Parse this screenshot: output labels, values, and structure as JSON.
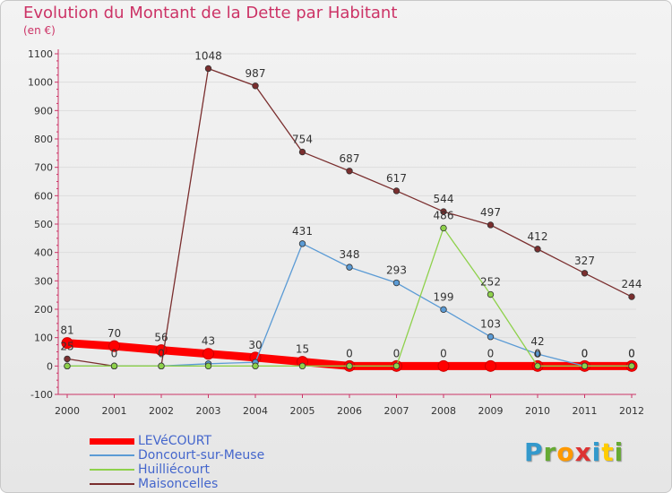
{
  "header": {
    "title": "Evolution du Montant de la Dette par Habitant",
    "subtitle": "(en €)"
  },
  "logo_text": "Proxiti",
  "logo_colors": [
    "#3399cc",
    "#66aa33",
    "#ff9900",
    "#dd3333",
    "#3399cc",
    "#ffcc00",
    "#66aa33"
  ],
  "chart_data": {
    "type": "line",
    "title": "Evolution du Montant de la Dette par Habitant",
    "ylabel": "(en €)",
    "xlabel": "",
    "ylim": [
      -100,
      1100
    ],
    "yticks": [
      -100,
      0,
      100,
      200,
      300,
      400,
      500,
      600,
      700,
      800,
      900,
      1000,
      1100
    ],
    "categories": [
      "2000",
      "2001",
      "2002",
      "2003",
      "2004",
      "2005",
      "2006",
      "2007",
      "2008",
      "2009",
      "2010",
      "2011",
      "2012"
    ],
    "series": [
      {
        "name": "LEVéCOURT",
        "color": "#ff0000",
        "thick": true,
        "values": [
          81,
          70,
          56,
          43,
          30,
          15,
          0,
          0,
          0,
          0,
          0,
          0,
          0
        ],
        "labels": [
          "81",
          "70",
          "56",
          "43",
          "30",
          "15",
          "0",
          "0",
          "0",
          "0",
          "0",
          "0",
          "0"
        ]
      },
      {
        "name": "Doncourt-sur-Meuse",
        "color": "#5b9bd5",
        "thick": false,
        "values": [
          0,
          0,
          0,
          8,
          13,
          431,
          348,
          293,
          199,
          103,
          42,
          0,
          0
        ],
        "labels": [
          "",
          "0",
          "0",
          "",
          "",
          "431",
          "348",
          "293",
          "199",
          "103",
          "42",
          "0",
          "0"
        ]
      },
      {
        "name": "Huilliécourt",
        "color": "#8ed14b",
        "thick": false,
        "values": [
          0,
          0,
          0,
          0,
          0,
          0,
          0,
          0,
          486,
          252,
          0,
          0,
          0
        ],
        "labels": [
          "",
          "",
          "",
          "",
          "",
          "",
          "",
          "",
          "486",
          "252",
          "",
          "",
          ""
        ]
      },
      {
        "name": "Maisoncelles",
        "color": "#7a2e2e",
        "thick": false,
        "values": [
          25,
          0,
          0,
          1048,
          987,
          754,
          687,
          617,
          544,
          497,
          412,
          327,
          244
        ],
        "labels": [
          "25",
          "",
          "",
          "1048",
          "987",
          "754",
          "687",
          "617",
          "544",
          "497",
          "412",
          "327",
          "244"
        ]
      }
    ]
  }
}
